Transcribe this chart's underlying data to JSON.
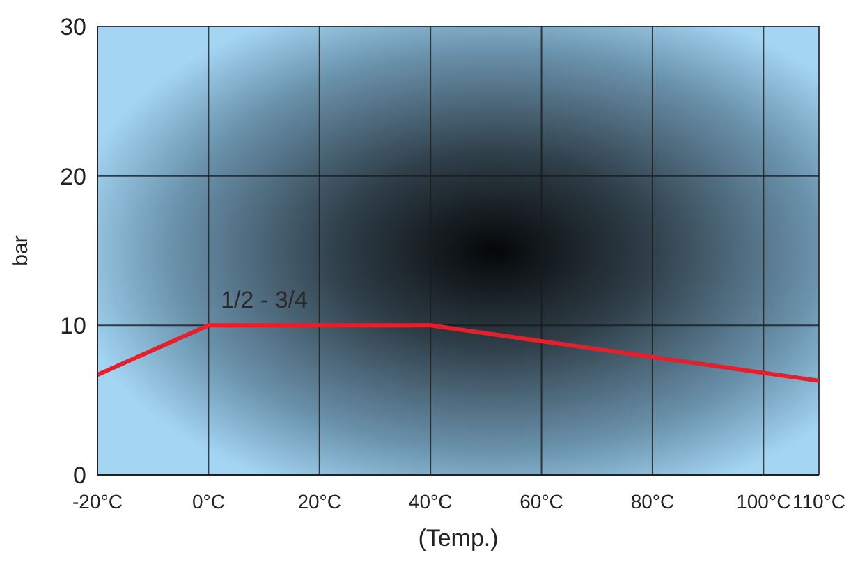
{
  "chart_data": {
    "type": "line",
    "xlabel": "(Temp.)",
    "ylabel": "bar",
    "x": [
      -20,
      0,
      40,
      110
    ],
    "series": [
      {
        "color": "#e3202b",
        "values": [
          6.7,
          10,
          10,
          6.3
        ]
      }
    ],
    "xlim": [
      -20,
      110
    ],
    "xticks": [
      {
        "value": -20,
        "label": "-20°C"
      },
      {
        "value": 0,
        "label": "0°C"
      },
      {
        "value": 20,
        "label": "20°C"
      },
      {
        "value": 40,
        "label": "40°C"
      },
      {
        "value": 60,
        "label": "60°C"
      },
      {
        "value": 80,
        "label": "80°C"
      },
      {
        "value": 100,
        "label": "100°C"
      },
      {
        "value": 110,
        "label": "110°C"
      }
    ],
    "ylim": [
      0,
      30
    ],
    "yticks": [
      0,
      10,
      20,
      30
    ],
    "grid": true,
    "marker": "none",
    "line_style": "solid",
    "annotations": [
      "1/2 - 3/4"
    ]
  }
}
